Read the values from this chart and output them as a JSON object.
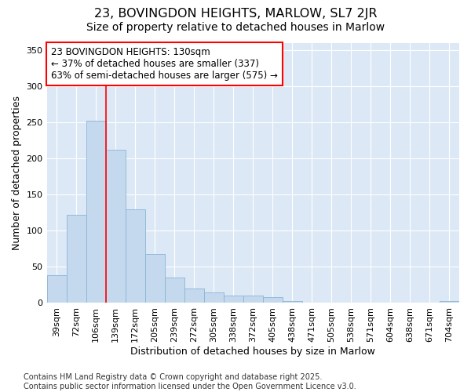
{
  "title": "23, BOVINGDON HEIGHTS, MARLOW, SL7 2JR",
  "subtitle": "Size of property relative to detached houses in Marlow",
  "xlabel": "Distribution of detached houses by size in Marlow",
  "ylabel": "Number of detached properties",
  "bar_color": "#c5d9ee",
  "bar_edge_color": "#8ab4d4",
  "plot_bg_color": "#dce8f5",
  "fig_bg_color": "#ffffff",
  "grid_color": "#ffffff",
  "categories": [
    "39sqm",
    "72sqm",
    "106sqm",
    "139sqm",
    "172sqm",
    "205sqm",
    "239sqm",
    "272sqm",
    "305sqm",
    "338sqm",
    "372sqm",
    "405sqm",
    "438sqm",
    "471sqm",
    "505sqm",
    "538sqm",
    "571sqm",
    "604sqm",
    "638sqm",
    "671sqm",
    "704sqm"
  ],
  "values": [
    38,
    122,
    253,
    212,
    130,
    68,
    35,
    20,
    15,
    10,
    10,
    8,
    3,
    1,
    1,
    1,
    0,
    0,
    0,
    0,
    3
  ],
  "ylim": [
    0,
    360
  ],
  "yticks": [
    0,
    50,
    100,
    150,
    200,
    250,
    300,
    350
  ],
  "red_line_index": 3,
  "annotation_text": "23 BOVINGDON HEIGHTS: 130sqm\n← 37% of detached houses are smaller (337)\n63% of semi-detached houses are larger (575) →",
  "footer": "Contains HM Land Registry data © Crown copyright and database right 2025.\nContains public sector information licensed under the Open Government Licence v3.0.",
  "title_fontsize": 11.5,
  "subtitle_fontsize": 10,
  "annotation_fontsize": 8.5,
  "axis_label_fontsize": 9,
  "tick_fontsize": 8,
  "footer_fontsize": 7
}
